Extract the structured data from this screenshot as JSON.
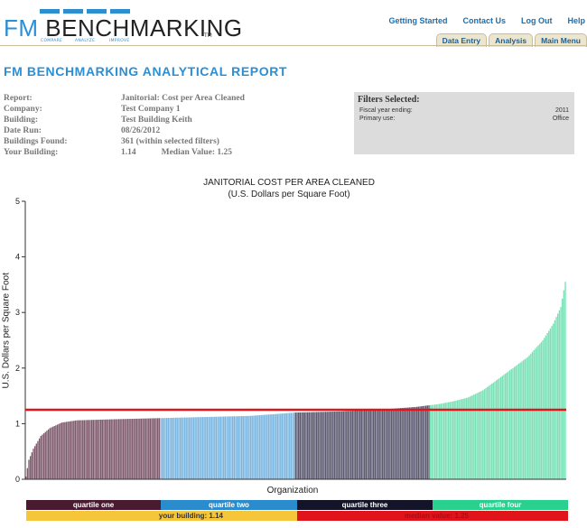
{
  "logo": {
    "fm": "FM",
    "bench": "BENCHMARKING",
    "tm": "TM",
    "tag": [
      "COMPARE",
      "ANALYZE",
      "IMPROVE"
    ]
  },
  "nav": {
    "links": [
      "Getting Started",
      "Contact Us",
      "Log Out",
      "Help"
    ],
    "tabs": [
      "Data Entry",
      "Analysis",
      "Main Menu"
    ]
  },
  "page_title": "FM BENCHMARKING ANALYTICAL REPORT",
  "meta": [
    {
      "label": "Report:",
      "value": "Janitorial: Cost per Area Cleaned"
    },
    {
      "label": "Company:",
      "value": "Test Company 1"
    },
    {
      "label": "Building:",
      "value": "Test Building Keith"
    },
    {
      "label": "Date Run:",
      "value": "08/26/2012"
    },
    {
      "label": "Buildings Found:",
      "value": "361 (within selected filters)"
    },
    {
      "label": "Your Building:",
      "value": "1.14"
    }
  ],
  "median_text": "Median Value: 1.25",
  "filters": {
    "title": "Filters Selected:",
    "rows": [
      {
        "label": "Fiscal year ending:",
        "value": "2011"
      },
      {
        "label": "Primary use:",
        "value": "Office"
      }
    ]
  },
  "colors": {
    "q1": "#7e5a6c",
    "q2": "#7ab6e0",
    "q3": "#5c5a70",
    "q4": "#7ae0b6",
    "median": "#e0141a",
    "q1_label": "#4a1a30",
    "q2_label": "#2a8ccc",
    "q3_label": "#141428",
    "q4_label": "#2ad08e",
    "yours_label": "#f5c53a"
  },
  "chart_data": {
    "type": "bar",
    "title": "JANITORIAL COST PER AREA CLEANED",
    "subtitle": "(U.S. Dollars per Square Foot)",
    "xlabel": "Organization",
    "ylabel": "U.S. Dollars per Square Foot",
    "ylim": [
      0,
      5
    ],
    "yticks": [
      "0",
      "1",
      "2",
      "3",
      "4",
      "5"
    ],
    "count": 361,
    "grid": false,
    "median_value": 1.25,
    "your_building_value": 1.14,
    "sorted_profile": [
      [
        0,
        0.05
      ],
      [
        2,
        0.35
      ],
      [
        5,
        0.55
      ],
      [
        10,
        0.78
      ],
      [
        16,
        0.92
      ],
      [
        24,
        1.02
      ],
      [
        34,
        1.06
      ],
      [
        60,
        1.08
      ],
      [
        90,
        1.1
      ],
      [
        120,
        1.12
      ],
      [
        150,
        1.14
      ],
      [
        180,
        1.2
      ],
      [
        210,
        1.22
      ],
      [
        240,
        1.26
      ],
      [
        260,
        1.3
      ],
      [
        275,
        1.35
      ],
      [
        285,
        1.4
      ],
      [
        295,
        1.47
      ],
      [
        305,
        1.6
      ],
      [
        315,
        1.8
      ],
      [
        325,
        2.0
      ],
      [
        335,
        2.2
      ],
      [
        345,
        2.5
      ],
      [
        352,
        2.8
      ],
      [
        357,
        3.1
      ],
      [
        360,
        3.55
      ]
    ],
    "quartiles": [
      {
        "name": "quartile one",
        "range": [
          0,
          89
        ]
      },
      {
        "name": "quartile two",
        "range": [
          90,
          179
        ]
      },
      {
        "name": "quartile three",
        "range": [
          180,
          269
        ]
      },
      {
        "name": "quartile four",
        "range": [
          270,
          360
        ]
      }
    ],
    "bottom_labels": {
      "yours": "your building: 1.14",
      "median": "median value: 1.25"
    }
  }
}
